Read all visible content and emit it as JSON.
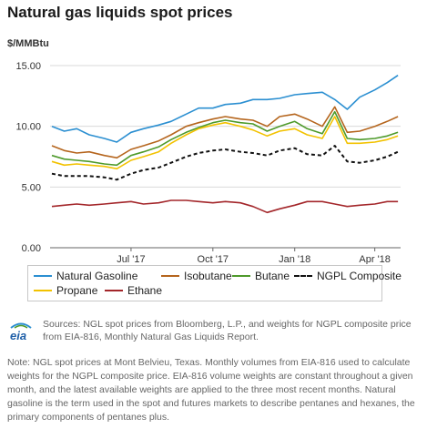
{
  "title": "Natural gas liquids spot prices",
  "unit_label": "$/MMBtu",
  "colors": {
    "natural_gasoline": "#2b8fd1",
    "isobutane": "#b5651d",
    "butane": "#4e9a2b",
    "ngpl_composite": "#111111",
    "propane": "#f2c200",
    "ethane": "#a3262a"
  },
  "legend": {
    "natural_gasoline": "Natural Gasoline",
    "isobutane": "Isobutane",
    "butane": "Butane",
    "ngpl_composite": "NGPL Composite",
    "propane": "Propane",
    "ethane": "Ethane"
  },
  "sources": "Sources: NGL spot prices from Bloomberg, L.P., and weights for NGPL composite price from EIA-816, Monthly Natural Gas Liquids Report.",
  "note": "Note: NGL spot prices at Mont Belvieu, Texas. Monthly volumes from EIA-816 used to calculate weights for the NGPL composite price. EIA-816 volume weights are constant throughout a given month, and the latest available weights are applied to the three most recent months. Natural gasoline is the term used in the spot and futures markets to describe pentanes and hexanes, the primary components of pentanes plus.",
  "logo_text": "eia",
  "chart_data": {
    "type": "line",
    "xlabel": "",
    "ylabel": "$/MMBtu",
    "x_range": [
      "2017-04-01",
      "2018-04-30"
    ],
    "x_ticks": [
      {
        "date": "2017-07-01",
        "label": "Jul '17"
      },
      {
        "date": "2017-10-01",
        "label": "Oct '17"
      },
      {
        "date": "2018-01-01",
        "label": "Jan '18"
      },
      {
        "date": "2018-04-01",
        "label": "Apr '18"
      }
    ],
    "ylim": [
      0,
      15
    ],
    "y_ticks": [
      "0.00",
      "5.00",
      "10.00",
      "15.00"
    ],
    "y_tick_values": [
      0,
      5,
      10,
      15
    ],
    "grid": true,
    "legend_position": "bottom",
    "series": [
      {
        "key": "natural_gasoline",
        "name": "Natural Gasoline",
        "style": "solid",
        "x": [
          "2017-04-03",
          "2017-04-17",
          "2017-05-01",
          "2017-05-15",
          "2017-06-01",
          "2017-06-15",
          "2017-07-01",
          "2017-07-15",
          "2017-08-01",
          "2017-08-15",
          "2017-09-01",
          "2017-09-15",
          "2017-10-01",
          "2017-10-15",
          "2017-11-01",
          "2017-11-15",
          "2017-12-01",
          "2017-12-15",
          "2018-01-01",
          "2018-01-15",
          "2018-02-01",
          "2018-02-15",
          "2018-03-01",
          "2018-03-15",
          "2018-04-01",
          "2018-04-15",
          "2018-04-27"
        ],
        "values": [
          10.0,
          9.6,
          9.8,
          9.3,
          9.0,
          8.7,
          9.5,
          9.8,
          10.1,
          10.4,
          11.0,
          11.5,
          11.5,
          11.8,
          11.9,
          12.2,
          12.2,
          12.3,
          12.6,
          12.7,
          12.8,
          12.2,
          11.4,
          12.4,
          13.0,
          13.6,
          14.2
        ]
      },
      {
        "key": "isobutane",
        "name": "Isobutane",
        "style": "solid",
        "x": [
          "2017-04-03",
          "2017-04-17",
          "2017-05-01",
          "2017-05-15",
          "2017-06-01",
          "2017-06-15",
          "2017-07-01",
          "2017-07-15",
          "2017-08-01",
          "2017-08-15",
          "2017-09-01",
          "2017-09-15",
          "2017-10-01",
          "2017-10-15",
          "2017-11-01",
          "2017-11-15",
          "2017-12-01",
          "2017-12-15",
          "2018-01-01",
          "2018-01-15",
          "2018-02-01",
          "2018-02-15",
          "2018-03-01",
          "2018-03-15",
          "2018-04-01",
          "2018-04-15",
          "2018-04-27"
        ],
        "values": [
          8.4,
          8.0,
          7.8,
          7.9,
          7.6,
          7.4,
          8.1,
          8.4,
          8.8,
          9.3,
          10.0,
          10.3,
          10.6,
          10.8,
          10.6,
          10.5,
          10.0,
          10.8,
          11.0,
          10.6,
          10.0,
          11.6,
          9.5,
          9.6,
          10.0,
          10.4,
          10.8
        ]
      },
      {
        "key": "butane",
        "name": "Butane",
        "style": "solid",
        "x": [
          "2017-04-03",
          "2017-04-17",
          "2017-05-01",
          "2017-05-15",
          "2017-06-01",
          "2017-06-15",
          "2017-07-01",
          "2017-07-15",
          "2017-08-01",
          "2017-08-15",
          "2017-09-01",
          "2017-09-15",
          "2017-10-01",
          "2017-10-15",
          "2017-11-01",
          "2017-11-15",
          "2017-12-01",
          "2017-12-15",
          "2018-01-01",
          "2018-01-15",
          "2018-02-01",
          "2018-02-15",
          "2018-03-01",
          "2018-03-15",
          "2018-04-01",
          "2018-04-15",
          "2018-04-27"
        ],
        "values": [
          7.6,
          7.3,
          7.2,
          7.1,
          6.9,
          6.8,
          7.6,
          7.9,
          8.3,
          8.9,
          9.5,
          9.9,
          10.3,
          10.5,
          10.3,
          10.2,
          9.6,
          10.0,
          10.4,
          9.8,
          9.4,
          11.2,
          9.0,
          8.9,
          9.0,
          9.2,
          9.5
        ]
      },
      {
        "key": "ngpl_composite",
        "name": "NGPL Composite",
        "style": "dashed",
        "x": [
          "2017-04-03",
          "2017-04-17",
          "2017-05-01",
          "2017-05-15",
          "2017-06-01",
          "2017-06-15",
          "2017-07-01",
          "2017-07-15",
          "2017-08-01",
          "2017-08-15",
          "2017-09-01",
          "2017-09-15",
          "2017-10-01",
          "2017-10-15",
          "2017-11-01",
          "2017-11-15",
          "2017-12-01",
          "2017-12-15",
          "2018-01-01",
          "2018-01-15",
          "2018-02-01",
          "2018-02-15",
          "2018-03-01",
          "2018-03-15",
          "2018-04-01",
          "2018-04-15",
          "2018-04-27"
        ],
        "values": [
          6.1,
          5.9,
          5.9,
          5.9,
          5.8,
          5.6,
          6.1,
          6.4,
          6.6,
          7.0,
          7.5,
          7.8,
          8.0,
          8.1,
          7.9,
          7.8,
          7.6,
          8.0,
          8.2,
          7.7,
          7.6,
          8.4,
          7.1,
          7.0,
          7.2,
          7.5,
          7.9
        ]
      },
      {
        "key": "propane",
        "name": "Propane",
        "style": "solid",
        "x": [
          "2017-04-03",
          "2017-04-17",
          "2017-05-01",
          "2017-05-15",
          "2017-06-01",
          "2017-06-15",
          "2017-07-01",
          "2017-07-15",
          "2017-08-01",
          "2017-08-15",
          "2017-09-01",
          "2017-09-15",
          "2017-10-01",
          "2017-10-15",
          "2017-11-01",
          "2017-11-15",
          "2017-12-01",
          "2017-12-15",
          "2018-01-01",
          "2018-01-15",
          "2018-02-01",
          "2018-02-15",
          "2018-03-01",
          "2018-03-15",
          "2018-04-01",
          "2018-04-15",
          "2018-04-27"
        ],
        "values": [
          7.1,
          6.8,
          6.9,
          6.8,
          6.7,
          6.5,
          7.2,
          7.5,
          7.9,
          8.6,
          9.3,
          9.8,
          10.1,
          10.3,
          10.0,
          9.7,
          9.2,
          9.6,
          9.8,
          9.3,
          9.0,
          10.8,
          8.6,
          8.6,
          8.7,
          8.9,
          9.2
        ]
      },
      {
        "key": "ethane",
        "name": "Ethane",
        "style": "solid",
        "x": [
          "2017-04-03",
          "2017-04-17",
          "2017-05-01",
          "2017-05-15",
          "2017-06-01",
          "2017-06-15",
          "2017-07-01",
          "2017-07-15",
          "2017-08-01",
          "2017-08-15",
          "2017-09-01",
          "2017-09-15",
          "2017-10-01",
          "2017-10-15",
          "2017-11-01",
          "2017-11-15",
          "2017-12-01",
          "2017-12-15",
          "2018-01-01",
          "2018-01-15",
          "2018-02-01",
          "2018-02-15",
          "2018-03-01",
          "2018-03-15",
          "2018-04-01",
          "2018-04-15",
          "2018-04-27"
        ],
        "values": [
          3.4,
          3.5,
          3.6,
          3.5,
          3.6,
          3.7,
          3.8,
          3.6,
          3.7,
          3.9,
          3.9,
          3.8,
          3.7,
          3.8,
          3.7,
          3.4,
          2.9,
          3.2,
          3.5,
          3.8,
          3.8,
          3.6,
          3.4,
          3.5,
          3.6,
          3.8,
          3.8
        ]
      }
    ]
  }
}
